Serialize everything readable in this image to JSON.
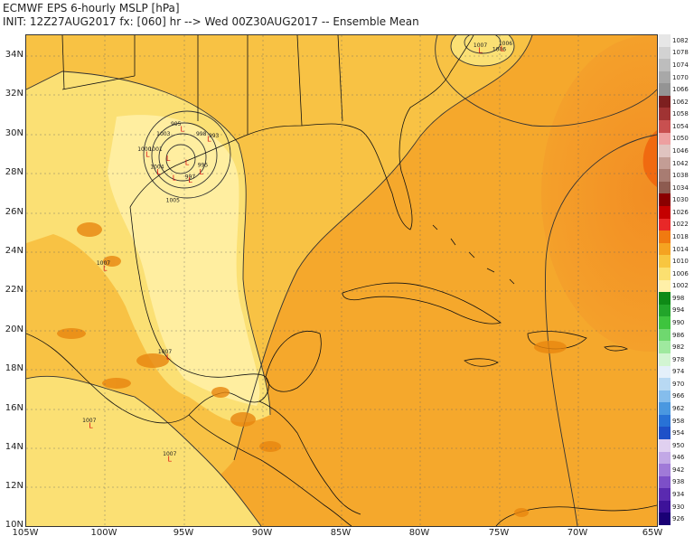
{
  "title": {
    "line1": "ECMWF EPS 6-hourly MSLP [hPa]",
    "line2": "INIT: 12Z27AUG2017 fx: [060] hr --> Wed 00Z30AUG2017 -- Ensemble Mean"
  },
  "axes": {
    "lat_labels": [
      "34N",
      "32N",
      "30N",
      "28N",
      "26N",
      "24N",
      "22N",
      "20N",
      "18N",
      "16N",
      "14N",
      "12N",
      "10N"
    ],
    "lon_labels": [
      "105W",
      "100W",
      "95W",
      "90W",
      "85W",
      "80W",
      "75W",
      "70W",
      "65W"
    ],
    "lat_range": [
      10,
      35
    ],
    "lon_range": [
      -105,
      -65
    ]
  },
  "legend": {
    "levels": [
      "1082",
      "1078",
      "1074",
      "1070",
      "1066",
      "1062",
      "1058",
      "1054",
      "1050",
      "1046",
      "1042",
      "1038",
      "1034",
      "1030",
      "1026",
      "1022",
      "1018",
      "1014",
      "1010",
      "1006",
      "1002",
      "998",
      "994",
      "990",
      "986",
      "982",
      "978",
      "974",
      "970",
      "966",
      "962",
      "958",
      "954",
      "950",
      "946",
      "942",
      "938",
      "934",
      "930",
      "926"
    ],
    "colors": [
      "#e6e6e6",
      "#d2d2d2",
      "#bdbdbd",
      "#a8a8a8",
      "#949494",
      "#7d1f1f",
      "#a03333",
      "#c85050",
      "#eda0a0",
      "#e0c4c0",
      "#c39d95",
      "#a87c72",
      "#8d5b50",
      "#8a0000",
      "#c40000",
      "#e82828",
      "#f07a10",
      "#f5a321",
      "#f8c640",
      "#fbe070",
      "#fff0a8",
      "#0e8a16",
      "#22a52a",
      "#3ec43e",
      "#6fd86f",
      "#9fe99f",
      "#d2f5d2",
      "#e4f0fa",
      "#b8d9f3",
      "#85bdec",
      "#4a98e0",
      "#2872d6",
      "#1e50c8",
      "#e0d0f0",
      "#c2a8e6",
      "#a07ad8",
      "#7d4fc8",
      "#5a2ab0",
      "#3d1299",
      "#1a0075"
    ]
  },
  "pressure_labels": [
    {
      "text": "1007",
      "lon": -76.2,
      "lat": 34.4
    },
    {
      "text": "1006",
      "lon": -75.0,
      "lat": 34.2
    },
    {
      "text": "1006",
      "lon": -74.6,
      "lat": 34.5
    },
    {
      "text": "995",
      "lon": -95.5,
      "lat": 30.4
    },
    {
      "text": "1003",
      "lon": -96.3,
      "lat": 29.9
    },
    {
      "text": "998",
      "lon": -93.9,
      "lat": 29.9
    },
    {
      "text": "993",
      "lon": -93.1,
      "lat": 29.8
    },
    {
      "text": "1000",
      "lon": -97.5,
      "lat": 29.1
    },
    {
      "text": "1001",
      "lon": -96.8,
      "lat": 29.1
    },
    {
      "text": "1004",
      "lon": -96.7,
      "lat": 28.2
    },
    {
      "text": "997",
      "lon": -94.6,
      "lat": 27.7
    },
    {
      "text": "995",
      "lon": -93.8,
      "lat": 28.3
    },
    {
      "text": "1005",
      "lon": -95.7,
      "lat": 26.5
    },
    {
      "text": "1007",
      "lon": -100.1,
      "lat": 23.3
    },
    {
      "text": "1007",
      "lon": -96.2,
      "lat": 18.8
    },
    {
      "text": "1007",
      "lon": -101.0,
      "lat": 15.3
    },
    {
      "text": "1007",
      "lon": -95.9,
      "lat": 13.6
    }
  ],
  "low_markers": [
    {
      "lon": -76.2,
      "lat": 34.1
    },
    {
      "lon": -74.8,
      "lat": 34.2
    },
    {
      "lon": -95.1,
      "lat": 30.1
    },
    {
      "lon": -93.4,
      "lat": 29.6
    },
    {
      "lon": -97.3,
      "lat": 28.8
    },
    {
      "lon": -96.0,
      "lat": 28.6
    },
    {
      "lon": -94.8,
      "lat": 28.4
    },
    {
      "lon": -96.6,
      "lat": 27.9
    },
    {
      "lon": -95.6,
      "lat": 27.6
    },
    {
      "lon": -94.6,
      "lat": 27.5
    },
    {
      "lon": -93.9,
      "lat": 27.9
    },
    {
      "lon": -100.0,
      "lat": 23.0
    },
    {
      "lon": -96.0,
      "lat": 18.5
    },
    {
      "lon": -100.9,
      "lat": 15.0
    },
    {
      "lon": -95.9,
      "lat": 13.3
    }
  ]
}
